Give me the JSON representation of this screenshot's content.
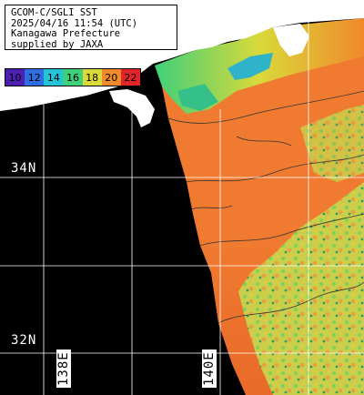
{
  "info": {
    "line1": "GCOM-C/SGLI SST",
    "line2": "2025/04/16 11:54 (UTC)",
    "line3": "Kanagawa Prefecture",
    "line4": "supplied by JAXA"
  },
  "colorbar": {
    "ticks": [
      {
        "label": "10",
        "color": "#4b1fb0"
      },
      {
        "label": "12",
        "color": "#2f6ee0"
      },
      {
        "label": "14",
        "color": "#25c3d8"
      },
      {
        "label": "16",
        "color": "#3fd07a"
      },
      {
        "label": "18",
        "color": "#d9d93a"
      },
      {
        "label": "20",
        "color": "#f08a2a"
      },
      {
        "label": "22",
        "color": "#e0242a"
      }
    ]
  },
  "grid": {
    "lat_labels": [
      "34N",
      "32N"
    ],
    "lon_labels": [
      "138E",
      "140E"
    ]
  },
  "colors": {
    "land": "#ffffff",
    "no_data": "#000000",
    "grid": "#ffffff",
    "warm": "#f07a30",
    "mid": "#d9d93a",
    "cool": "#3fd07a"
  }
}
